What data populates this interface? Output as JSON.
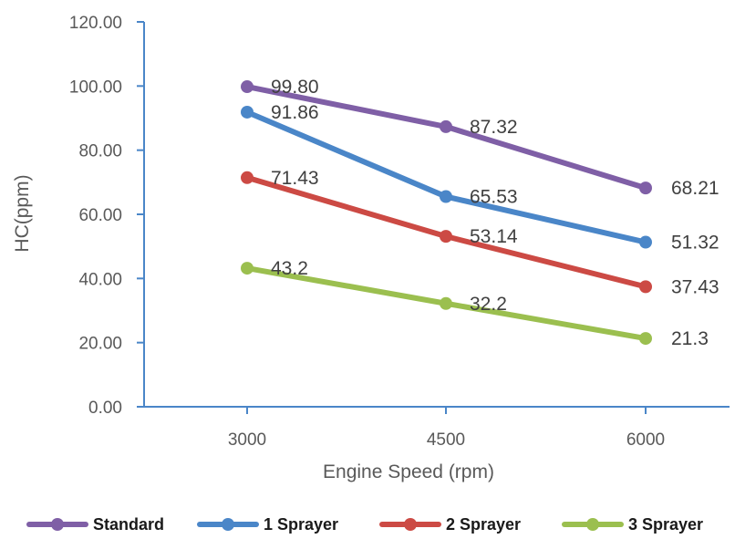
{
  "chart_data": {
    "type": "line",
    "title": "",
    "xlabel": "Engine Speed (rpm)",
    "ylabel": "HC(ppm)",
    "categories": [
      "3000",
      "4500",
      "6000"
    ],
    "ylim": [
      0,
      120
    ],
    "yticks": [
      "0.00",
      "20.00",
      "40.00",
      "60.00",
      "80.00",
      "100.00",
      "120.00"
    ],
    "grid": false,
    "legend_position": "bottom",
    "series": [
      {
        "name": "Standard",
        "color": "#7f5fa6",
        "values": [
          99.8,
          87.32,
          68.21
        ],
        "labels": [
          "99.80",
          "87.32",
          "68.21"
        ]
      },
      {
        "name": "1 Sprayer",
        "color": "#4a86c8",
        "values": [
          91.86,
          65.53,
          51.32
        ],
        "labels": [
          "91.86",
          "65.53",
          "51.32"
        ]
      },
      {
        "name": "2 Sprayer",
        "color": "#cc4a44",
        "values": [
          71.43,
          53.14,
          37.43
        ],
        "labels": [
          "71.43",
          "53.14",
          "37.43"
        ]
      },
      {
        "name": "3 Sprayer",
        "color": "#9bbf4f",
        "values": [
          43.2,
          32.2,
          21.3
        ],
        "labels": [
          "43.2",
          "32.2",
          "21.3"
        ]
      }
    ]
  }
}
